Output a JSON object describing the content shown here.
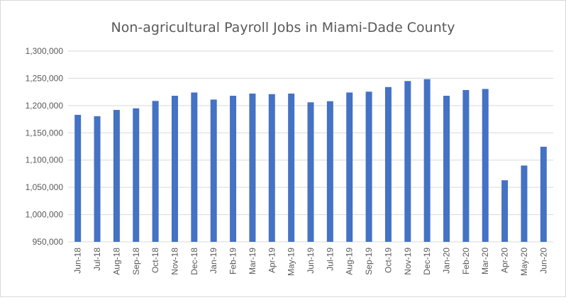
{
  "chart_data": {
    "type": "bar",
    "title": "Non-agricultural Payroll Jobs in Miami-Dade County",
    "xlabel": "",
    "ylabel": "",
    "ylim": [
      950000,
      1300000
    ],
    "yticks": [
      950000,
      1000000,
      1050000,
      1100000,
      1150000,
      1200000,
      1250000,
      1300000
    ],
    "ytick_labels": [
      "950,000",
      "1,000,000",
      "1,050,000",
      "1,100,000",
      "1,150,000",
      "1,200,000",
      "1,250,000",
      "1,300,000"
    ],
    "grid": true,
    "legend": "none",
    "bar_color": "#4472C4",
    "categories": [
      "Jun-18",
      "Jul-18",
      "Aug-18",
      "Sep-18",
      "Oct-18",
      "Nov-18",
      "Dec-18",
      "Jan-19",
      "Feb-19",
      "Mar-19",
      "Apr-19",
      "May-19",
      "Jun-19",
      "Jul-19",
      "Aug-19",
      "Sep-19",
      "Oct-19",
      "Nov-19",
      "Dec-19",
      "Jan-20",
      "Feb-20",
      "Mar-20",
      "Apr-20",
      "May-20",
      "Jun-20"
    ],
    "values": [
      1183000,
      1180500,
      1192000,
      1195000,
      1208500,
      1218000,
      1224000,
      1211000,
      1218000,
      1222000,
      1221000,
      1222000,
      1206000,
      1208000,
      1224000,
      1225500,
      1234000,
      1245000,
      1248500,
      1218000,
      1228500,
      1230500,
      1063000,
      1090000,
      1124500
    ]
  }
}
